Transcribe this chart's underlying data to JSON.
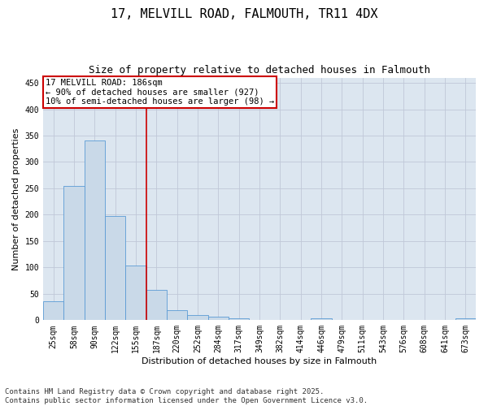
{
  "title_line1": "17, MELVILL ROAD, FALMOUTH, TR11 4DX",
  "title_line2": "Size of property relative to detached houses in Falmouth",
  "xlabel": "Distribution of detached houses by size in Falmouth",
  "ylabel": "Number of detached properties",
  "categories": [
    "25sqm",
    "58sqm",
    "90sqm",
    "122sqm",
    "155sqm",
    "187sqm",
    "220sqm",
    "252sqm",
    "284sqm",
    "317sqm",
    "349sqm",
    "382sqm",
    "414sqm",
    "446sqm",
    "479sqm",
    "511sqm",
    "543sqm",
    "576sqm",
    "608sqm",
    "641sqm",
    "673sqm"
  ],
  "values": [
    36,
    255,
    340,
    197,
    104,
    57,
    19,
    10,
    7,
    4,
    1,
    0,
    0,
    3,
    0,
    0,
    0,
    0,
    0,
    0,
    3
  ],
  "bar_color": "#c9d9e8",
  "bar_edge_color": "#5b9bd5",
  "grid_color": "#c0c8d8",
  "background_color": "#dce6f0",
  "annotation_box_text": "17 MELVILL ROAD: 186sqm\n← 90% of detached houses are smaller (927)\n10% of semi-detached houses are larger (98) →",
  "annotation_box_color": "#cc0000",
  "ylim": [
    0,
    460
  ],
  "yticks": [
    0,
    50,
    100,
    150,
    200,
    250,
    300,
    350,
    400,
    450
  ],
  "footnote": "Contains HM Land Registry data © Crown copyright and database right 2025.\nContains public sector information licensed under the Open Government Licence v3.0.",
  "title_fontsize": 11,
  "subtitle_fontsize": 9,
  "xlabel_fontsize": 8,
  "ylabel_fontsize": 8,
  "tick_fontsize": 7,
  "annotation_fontsize": 7.5,
  "footnote_fontsize": 6.5
}
